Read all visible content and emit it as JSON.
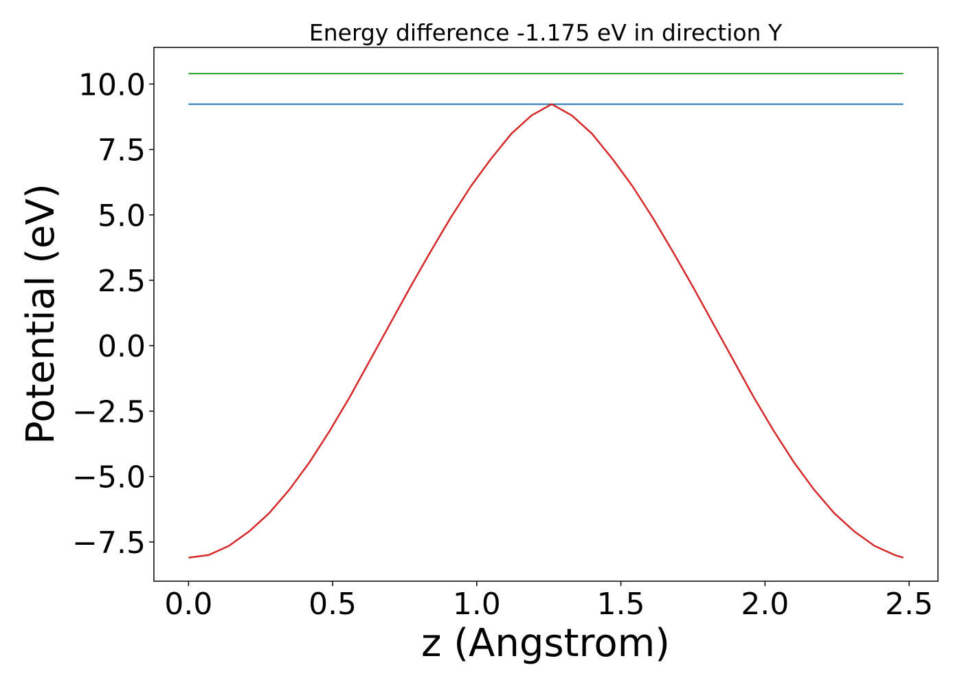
{
  "chart_data": {
    "type": "line",
    "title": "Energy difference -1.175 eV in direction Y",
    "xlabel": "z (Angstrom)",
    "ylabel": "Potential (eV)",
    "xlim": [
      -0.12,
      2.6
    ],
    "ylim": [
      -9.0,
      11.4
    ],
    "xticks": [
      {
        "value": 0.0,
        "label": "0.0"
      },
      {
        "value": 0.5,
        "label": "0.5"
      },
      {
        "value": 1.0,
        "label": "1.0"
      },
      {
        "value": 1.5,
        "label": "1.5"
      },
      {
        "value": 2.0,
        "label": "2.0"
      },
      {
        "value": 2.5,
        "label": "2.5"
      }
    ],
    "yticks": [
      {
        "value": 10.0,
        "label": "10.0"
      },
      {
        "value": 7.5,
        "label": "7.5"
      },
      {
        "value": 5.0,
        "label": "5.0"
      },
      {
        "value": 2.5,
        "label": "2.5"
      },
      {
        "value": 0.0,
        "label": "0.0"
      },
      {
        "value": -2.5,
        "label": "−2.5"
      },
      {
        "value": -5.0,
        "label": "−5.0"
      },
      {
        "value": -7.5,
        "label": "−7.5"
      }
    ],
    "grid": false,
    "series": [
      {
        "color": "#2ca02c",
        "x": [
          0.0,
          2.48
        ],
        "y": [
          10.4,
          10.4
        ]
      },
      {
        "color": "#1f77b4",
        "x": [
          0.0,
          2.48
        ],
        "y": [
          9.23,
          9.23
        ]
      },
      {
        "color": "#d62728",
        "x": [
          0.0,
          0.07,
          0.14,
          0.21,
          0.28,
          0.35,
          0.42,
          0.49,
          0.56,
          0.63,
          0.7,
          0.77,
          0.84,
          0.91,
          0.98,
          1.05,
          1.12,
          1.19,
          1.26,
          1.33,
          1.4,
          1.47,
          1.54,
          1.61,
          1.68,
          1.75,
          1.82,
          1.89,
          1.96,
          2.03,
          2.1,
          2.17,
          2.24,
          2.31,
          2.38,
          2.45,
          2.48
        ],
        "y": [
          -8.1,
          -8.0,
          -7.65,
          -7.1,
          -6.4,
          -5.5,
          -4.45,
          -3.25,
          -1.95,
          -0.55,
          0.85,
          2.25,
          3.6,
          4.9,
          6.1,
          7.15,
          8.1,
          8.8,
          9.23,
          8.8,
          8.1,
          7.15,
          6.1,
          4.9,
          3.6,
          2.25,
          0.85,
          -0.55,
          -1.95,
          -3.25,
          -4.45,
          -5.5,
          -6.4,
          -7.1,
          -7.65,
          -8.0,
          -8.1
        ]
      }
    ]
  }
}
